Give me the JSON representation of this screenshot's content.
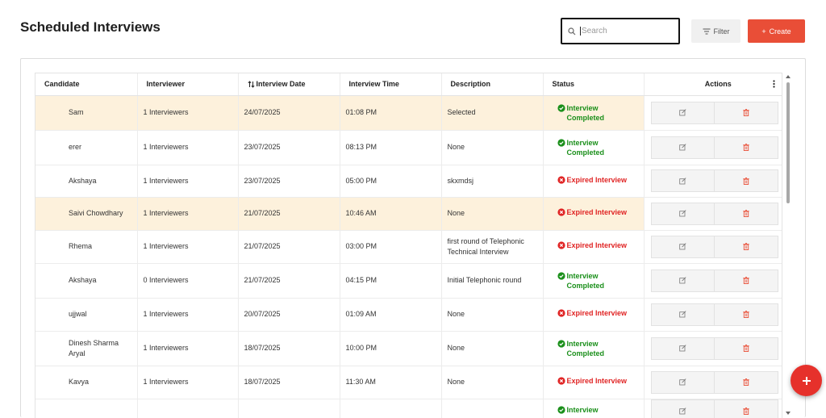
{
  "header": {
    "title": "Scheduled Interviews",
    "search_placeholder": "Search",
    "filter_label": "Filter",
    "create_label": "Create"
  },
  "table": {
    "columns": {
      "candidate": "Candidate",
      "interviewer": "Interviewer",
      "date": "Interview Date",
      "time": "Interview Time",
      "description": "Description",
      "status": "Status",
      "actions": "Actions"
    },
    "rows": [
      {
        "candidate": "Sam",
        "interviewer": "1 Interviewers",
        "date": "24/07/2025",
        "time": "01:08 PM",
        "description": "Selected",
        "status_line1": "Interview",
        "status_line2": "Completed",
        "status_type": "completed",
        "highlight": true
      },
      {
        "candidate": "erer",
        "interviewer": "1 Interviewers",
        "date": "23/07/2025",
        "time": "08:13 PM",
        "description": "None",
        "status_line1": "Interview",
        "status_line2": "Completed",
        "status_type": "completed",
        "highlight": false
      },
      {
        "candidate": "Akshaya",
        "interviewer": "1 Interviewers",
        "date": "23/07/2025",
        "time": "05:00 PM",
        "description": "skxmdsj",
        "status_line1": "Expired Interview",
        "status_line2": "",
        "status_type": "expired",
        "highlight": false
      },
      {
        "candidate": "Saivi Chowdhary",
        "interviewer": "1 Interviewers",
        "date": "21/07/2025",
        "time": "10:46 AM",
        "description": "None",
        "status_line1": "Expired Interview",
        "status_line2": "",
        "status_type": "expired",
        "highlight": true
      },
      {
        "candidate": "Rhema",
        "interviewer": "1 Interviewers",
        "date": "21/07/2025",
        "time": "03:00 PM",
        "description": "first round of Telephonic Technical Interview",
        "status_line1": "Expired Interview",
        "status_line2": "",
        "status_type": "expired",
        "highlight": false
      },
      {
        "candidate": "Akshaya",
        "interviewer": "0 Interviewers",
        "date": "21/07/2025",
        "time": "04:15 PM",
        "description": "Initial Telephonic round",
        "status_line1": "Interview",
        "status_line2": "Completed",
        "status_type": "completed",
        "highlight": false
      },
      {
        "candidate": "ujjwal",
        "interviewer": "1 Interviewers",
        "date": "20/07/2025",
        "time": "01:09 AM",
        "description": "None",
        "status_line1": "Expired Interview",
        "status_line2": "",
        "status_type": "expired",
        "highlight": false
      },
      {
        "candidate": "Dinesh Sharma Aryal",
        "interviewer": "1 Interviewers",
        "date": "18/07/2025",
        "time": "10:00 PM",
        "description": "None",
        "status_line1": "Interview",
        "status_line2": "Completed",
        "status_type": "completed",
        "highlight": false
      },
      {
        "candidate": "Kavya",
        "interviewer": "1 Interviewers",
        "date": "18/07/2025",
        "time": "11:30 AM",
        "description": "None",
        "status_line1": "Expired Interview",
        "status_line2": "",
        "status_type": "expired",
        "highlight": false
      },
      {
        "candidate": "",
        "interviewer": "",
        "date": "",
        "time": "",
        "description": "",
        "status_line1": "Interview",
        "status_line2": "",
        "status_type": "completed",
        "highlight": false
      }
    ]
  },
  "colors": {
    "accent": "#e94e37",
    "fab": "#e6312b",
    "highlight_row": "#fdf1dc",
    "status_completed": "#1a8f1a",
    "status_expired": "#e02424"
  },
  "icons": {
    "search": "search-icon",
    "filter": "filter-icon",
    "create": "plus-icon",
    "sort": "sort-icon",
    "kebab": "kebab-menu-icon",
    "completed": "check-circle-icon",
    "expired": "x-circle-icon",
    "edit": "edit-icon",
    "delete": "trash-icon",
    "fab": "plus-icon"
  }
}
